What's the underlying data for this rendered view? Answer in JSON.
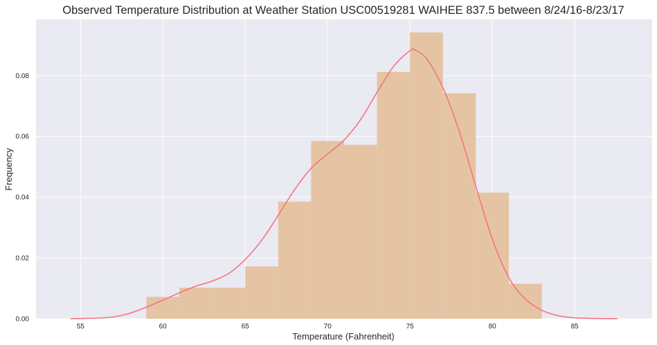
{
  "chart_data": {
    "type": "bar",
    "title": "Observed Temperature Distribution at Weather Station USC00519281 WAIHEE 837.5 between 8/24/16-8/23/17",
    "xlabel": "Temperature (Fahrenheit)",
    "ylabel": "Frequency",
    "xlim": [
      52.3,
      89.7
    ],
    "ylim": [
      0,
      0.0985
    ],
    "x_ticks": [
      "55",
      "60",
      "65",
      "70",
      "75",
      "80",
      "85"
    ],
    "y_ticks": [
      "0.00",
      "0.02",
      "0.04",
      "0.06",
      "0.08"
    ],
    "grid": true,
    "histogram": {
      "bin_edges": [
        59,
        61,
        63,
        65,
        67,
        69,
        71,
        73,
        75,
        77,
        79,
        81,
        83
      ],
      "values": [
        0.0072,
        0.0102,
        0.0102,
        0.0172,
        0.0385,
        0.0585,
        0.0572,
        0.0812,
        0.0942,
        0.0742,
        0.0415,
        0.0115
      ],
      "color": "#e5c4a4"
    },
    "kde": {
      "x": [
        54.4,
        56,
        57,
        58,
        59,
        60,
        61,
        62,
        63,
        64,
        65,
        66,
        67,
        68,
        69,
        70,
        71,
        72,
        73,
        74,
        75,
        75.3,
        76,
        77,
        78,
        79,
        80,
        81,
        82,
        83,
        84,
        85,
        86,
        87.6
      ],
      "y": [
        0.0,
        0.0002,
        0.0006,
        0.0018,
        0.0038,
        0.0061,
        0.0085,
        0.0107,
        0.0124,
        0.0149,
        0.0195,
        0.0258,
        0.034,
        0.0425,
        0.0495,
        0.0542,
        0.0588,
        0.0655,
        0.0745,
        0.083,
        0.0882,
        0.0884,
        0.0856,
        0.076,
        0.0615,
        0.0435,
        0.0262,
        0.0135,
        0.0065,
        0.0028,
        0.001,
        0.0003,
        0.0001,
        0.0
      ],
      "color": "#f5737e"
    },
    "colors": {
      "plot_background": "#eaeaf2",
      "grid": "#ffffff"
    }
  }
}
